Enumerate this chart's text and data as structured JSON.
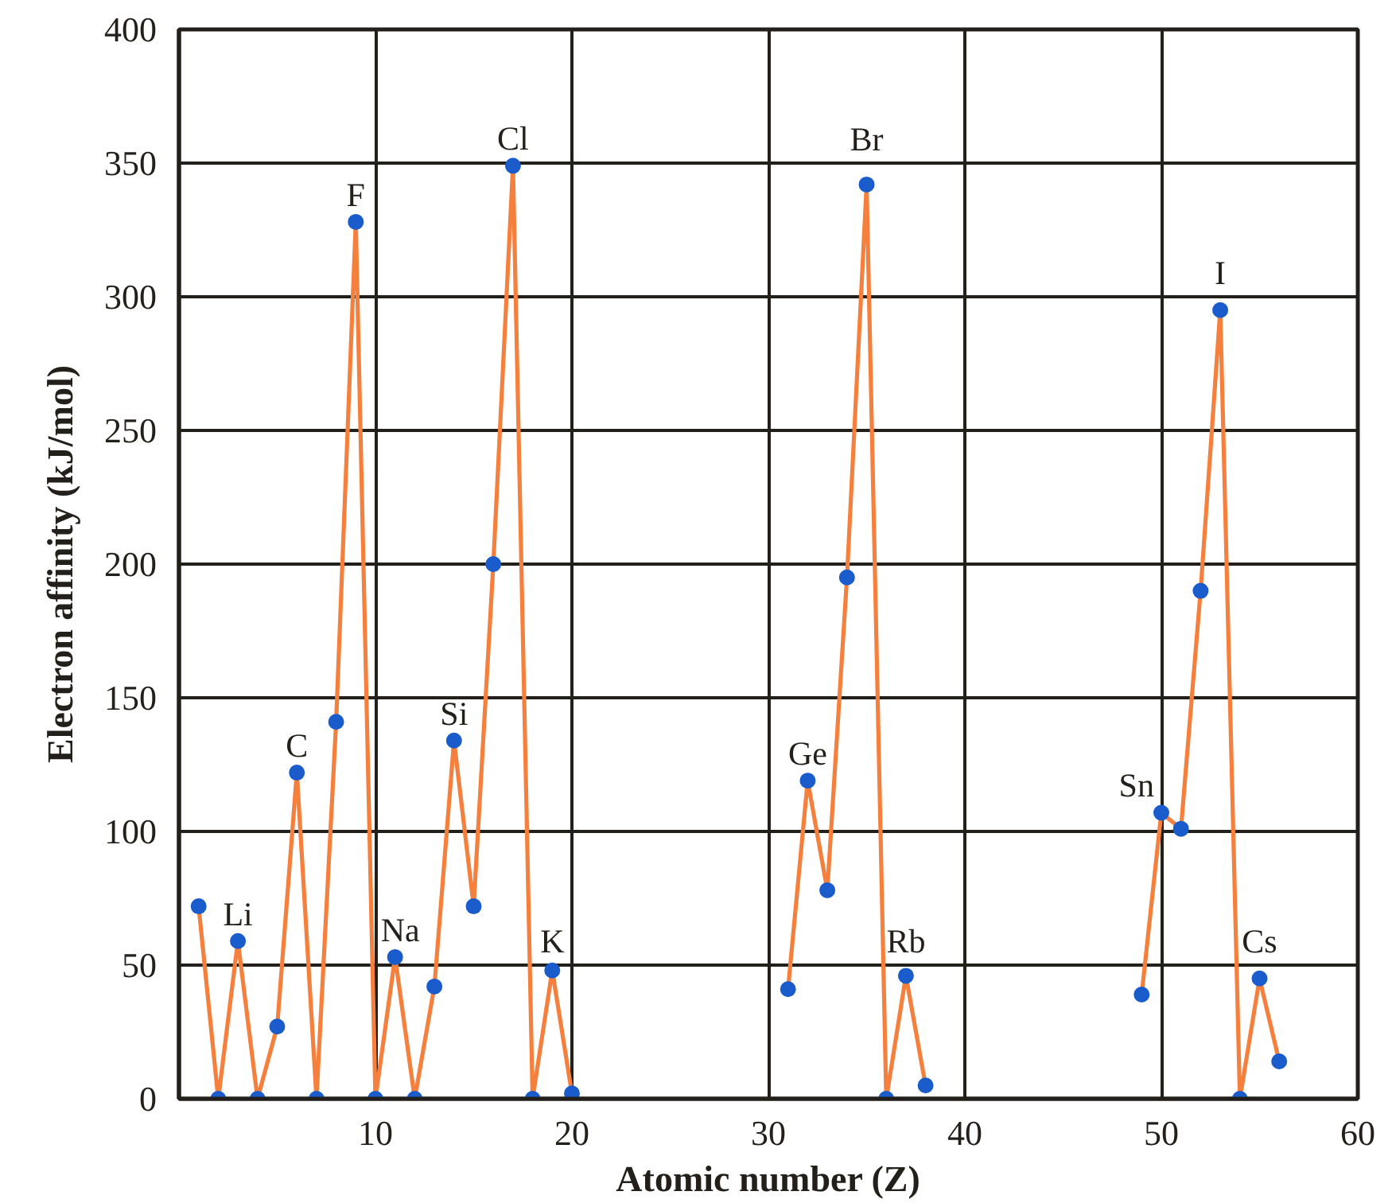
{
  "chart_data": {
    "type": "line",
    "xlabel": "Atomic number (Z)",
    "ylabel": "Electron affinity (kJ/mol)",
    "xlim": [
      0,
      60
    ],
    "xticks": [
      10,
      20,
      30,
      40,
      50,
      60
    ],
    "ylim": [
      0,
      400
    ],
    "yticks": [
      0,
      50,
      100,
      150,
      200,
      250,
      300,
      350,
      400
    ],
    "grid": true,
    "marker": "circle",
    "line_style": "solid",
    "series": [
      {
        "color": "#f5803e",
        "x": [
          1,
          2,
          3,
          4,
          5,
          6,
          7,
          8,
          9,
          10,
          11,
          12,
          13,
          14,
          15,
          16,
          17,
          18,
          19,
          20
        ],
        "values": [
          72,
          0,
          59,
          0,
          27,
          122,
          0,
          141,
          328,
          0,
          53,
          0,
          42,
          134,
          72,
          200,
          349,
          0,
          48,
          2
        ],
        "colors": [
          "#1a5ccc",
          "#1a5ccc",
          "#1a5ccc",
          "#1a5ccc",
          "#1a5ccc",
          "#1a5ccc",
          "#1a5ccc",
          "#1a5ccc",
          "#1a5ccc",
          "#1a5ccc",
          "#1a5ccc",
          "#1a5ccc",
          "#1a5ccc",
          "#1a5ccc",
          "#1a5ccc",
          "#1a5ccc",
          "#1a5ccc",
          "#1a5ccc",
          "#1a5ccc",
          "#1a5ccc"
        ]
      },
      {
        "color": "#f5803e",
        "x": [
          31,
          32,
          33,
          34,
          35,
          36,
          37,
          38
        ],
        "values": [
          41,
          119,
          78,
          195,
          342,
          0,
          46,
          5
        ],
        "colors": [
          "#1a5ccc",
          "#1a5ccc",
          "#1a5ccc",
          "#1a5ccc",
          "#1a5ccc",
          "#1a5ccc",
          "#1a5ccc",
          "#1a5ccc"
        ]
      },
      {
        "color": "#f5803e",
        "x": [
          49,
          50,
          51,
          52,
          53,
          54,
          55,
          56
        ],
        "values": [
          39,
          107,
          101,
          190,
          295,
          0,
          45,
          14
        ],
        "colors": [
          "#1a5ccc",
          "#1a5ccc",
          "#1a5ccc",
          "#1a5ccc",
          "#1a5ccc",
          "#1a5ccc",
          "#1a5ccc",
          "#1a5ccc"
        ]
      }
    ],
    "annotations": [
      {
        "text": "Li",
        "x": 3,
        "y": 59
      },
      {
        "text": "C",
        "x": 6,
        "y": 122
      },
      {
        "text": "F",
        "x": 9,
        "y": 328
      },
      {
        "text": "Na",
        "x": 11,
        "y": 53
      },
      {
        "text": "Si",
        "x": 14,
        "y": 134
      },
      {
        "text": "Cl",
        "x": 17,
        "y": 349
      },
      {
        "text": "K",
        "x": 19,
        "y": 48
      },
      {
        "text": "Ge",
        "x": 32,
        "y": 119
      },
      {
        "text": "Br",
        "x": 35,
        "y": 342
      },
      {
        "text": "Rb",
        "x": 37,
        "y": 46
      },
      {
        "text": "Sn",
        "x": 50,
        "y": 107
      },
      {
        "text": "I",
        "x": 53,
        "y": 295
      },
      {
        "text": "Cs",
        "x": 55,
        "y": 45
      }
    ]
  }
}
